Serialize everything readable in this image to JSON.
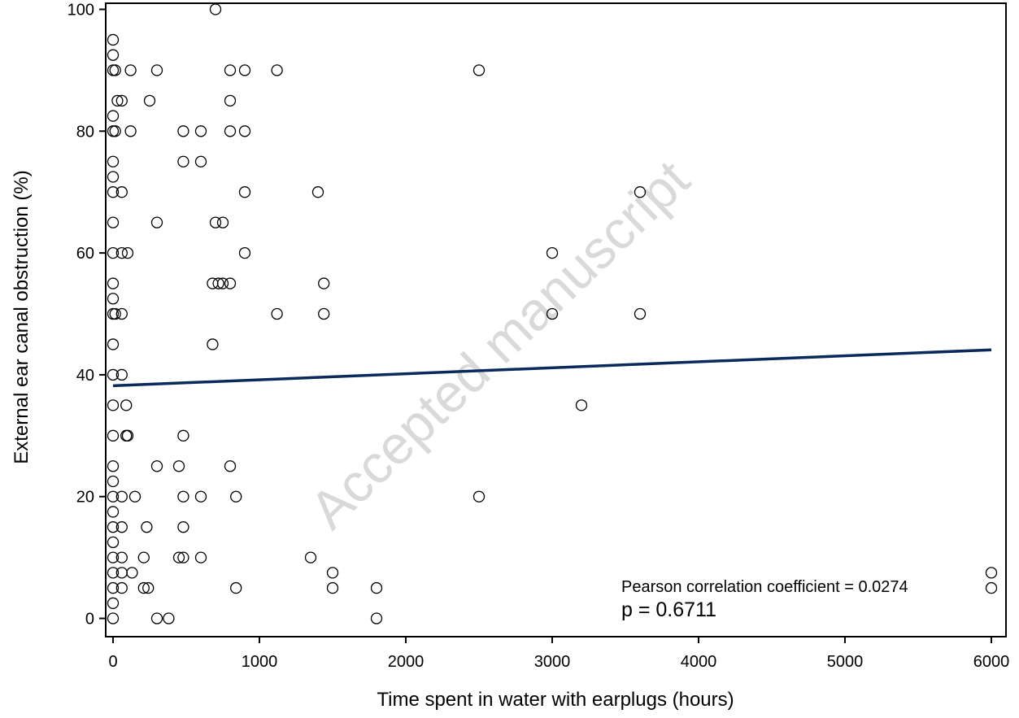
{
  "chart_data": {
    "type": "scatter",
    "title": "",
    "xlabel": "Time spent in water with earplugs (hours)",
    "ylabel": "External ear canal obstruction (%)",
    "xlim": [
      -50,
      6100
    ],
    "ylim": [
      -3,
      101
    ],
    "x_ticks": [
      0,
      1000,
      2000,
      3000,
      4000,
      5000,
      6000
    ],
    "y_ticks": [
      0,
      20,
      40,
      60,
      80,
      100
    ],
    "grid": false,
    "legend": "none",
    "marker_color": "#000000",
    "trend_color": "#0b2a5c",
    "points": [
      {
        "x": 700,
        "y": 100
      },
      {
        "x": 0,
        "y": 95
      },
      {
        "x": 0,
        "y": 92.5
      },
      {
        "x": 0,
        "y": 90
      },
      {
        "x": 15,
        "y": 90
      },
      {
        "x": 120,
        "y": 90
      },
      {
        "x": 300,
        "y": 90
      },
      {
        "x": 800,
        "y": 90
      },
      {
        "x": 900,
        "y": 90
      },
      {
        "x": 1120,
        "y": 90
      },
      {
        "x": 2500,
        "y": 90
      },
      {
        "x": 30,
        "y": 85
      },
      {
        "x": 60,
        "y": 85
      },
      {
        "x": 250,
        "y": 85
      },
      {
        "x": 800,
        "y": 85
      },
      {
        "x": 0,
        "y": 82.5
      },
      {
        "x": 0,
        "y": 80
      },
      {
        "x": 15,
        "y": 80
      },
      {
        "x": 120,
        "y": 80
      },
      {
        "x": 480,
        "y": 80
      },
      {
        "x": 600,
        "y": 80
      },
      {
        "x": 800,
        "y": 80
      },
      {
        "x": 900,
        "y": 80
      },
      {
        "x": 0,
        "y": 75
      },
      {
        "x": 480,
        "y": 75
      },
      {
        "x": 600,
        "y": 75
      },
      {
        "x": 0,
        "y": 72.5
      },
      {
        "x": 0,
        "y": 70
      },
      {
        "x": 60,
        "y": 70
      },
      {
        "x": 900,
        "y": 70
      },
      {
        "x": 1400,
        "y": 70
      },
      {
        "x": 3600,
        "y": 70
      },
      {
        "x": 0,
        "y": 65
      },
      {
        "x": 300,
        "y": 65
      },
      {
        "x": 700,
        "y": 65
      },
      {
        "x": 750,
        "y": 65
      },
      {
        "x": 0,
        "y": 60
      },
      {
        "x": 60,
        "y": 60
      },
      {
        "x": 100,
        "y": 60
      },
      {
        "x": 900,
        "y": 60
      },
      {
        "x": 3000,
        "y": 60
      },
      {
        "x": 0,
        "y": 55
      },
      {
        "x": 680,
        "y": 55
      },
      {
        "x": 720,
        "y": 55
      },
      {
        "x": 750,
        "y": 55
      },
      {
        "x": 800,
        "y": 55
      },
      {
        "x": 1440,
        "y": 55
      },
      {
        "x": 0,
        "y": 52.5
      },
      {
        "x": 0,
        "y": 50
      },
      {
        "x": 15,
        "y": 50
      },
      {
        "x": 60,
        "y": 50
      },
      {
        "x": 1120,
        "y": 50
      },
      {
        "x": 1440,
        "y": 50
      },
      {
        "x": 3000,
        "y": 50
      },
      {
        "x": 3600,
        "y": 50
      },
      {
        "x": 0,
        "y": 45
      },
      {
        "x": 680,
        "y": 45
      },
      {
        "x": 0,
        "y": 40
      },
      {
        "x": 60,
        "y": 40
      },
      {
        "x": 0,
        "y": 35
      },
      {
        "x": 90,
        "y": 35
      },
      {
        "x": 3200,
        "y": 35
      },
      {
        "x": 0,
        "y": 30
      },
      {
        "x": 90,
        "y": 30
      },
      {
        "x": 100,
        "y": 30
      },
      {
        "x": 480,
        "y": 30
      },
      {
        "x": 0,
        "y": 25
      },
      {
        "x": 300,
        "y": 25
      },
      {
        "x": 450,
        "y": 25
      },
      {
        "x": 800,
        "y": 25
      },
      {
        "x": 0,
        "y": 22.5
      },
      {
        "x": 0,
        "y": 20
      },
      {
        "x": 60,
        "y": 20
      },
      {
        "x": 150,
        "y": 20
      },
      {
        "x": 480,
        "y": 20
      },
      {
        "x": 600,
        "y": 20
      },
      {
        "x": 840,
        "y": 20
      },
      {
        "x": 2500,
        "y": 20
      },
      {
        "x": 0,
        "y": 17.5
      },
      {
        "x": 0,
        "y": 15
      },
      {
        "x": 60,
        "y": 15
      },
      {
        "x": 230,
        "y": 15
      },
      {
        "x": 480,
        "y": 15
      },
      {
        "x": 0,
        "y": 12.5
      },
      {
        "x": 0,
        "y": 10
      },
      {
        "x": 60,
        "y": 10
      },
      {
        "x": 210,
        "y": 10
      },
      {
        "x": 450,
        "y": 10
      },
      {
        "x": 480,
        "y": 10
      },
      {
        "x": 600,
        "y": 10
      },
      {
        "x": 1350,
        "y": 10
      },
      {
        "x": 0,
        "y": 7.5
      },
      {
        "x": 60,
        "y": 7.5
      },
      {
        "x": 130,
        "y": 7.5
      },
      {
        "x": 1500,
        "y": 7.5
      },
      {
        "x": 6000,
        "y": 7.5
      },
      {
        "x": 0,
        "y": 5
      },
      {
        "x": 60,
        "y": 5
      },
      {
        "x": 210,
        "y": 5
      },
      {
        "x": 240,
        "y": 5
      },
      {
        "x": 840,
        "y": 5
      },
      {
        "x": 1500,
        "y": 5
      },
      {
        "x": 1800,
        "y": 5
      },
      {
        "x": 6000,
        "y": 5
      },
      {
        "x": 0,
        "y": 2.5
      },
      {
        "x": 0,
        "y": 0
      },
      {
        "x": 300,
        "y": 0
      },
      {
        "x": 380,
        "y": 0
      },
      {
        "x": 1800,
        "y": 0
      }
    ],
    "trend_line": {
      "x": [
        0,
        6000
      ],
      "y": [
        38.2,
        44.1
      ]
    },
    "annotations": {
      "correlation": "Pearson correlation coefficient = 0.0274",
      "p_value": "p = 0.6711"
    },
    "watermark": "Accepted manuscript"
  }
}
